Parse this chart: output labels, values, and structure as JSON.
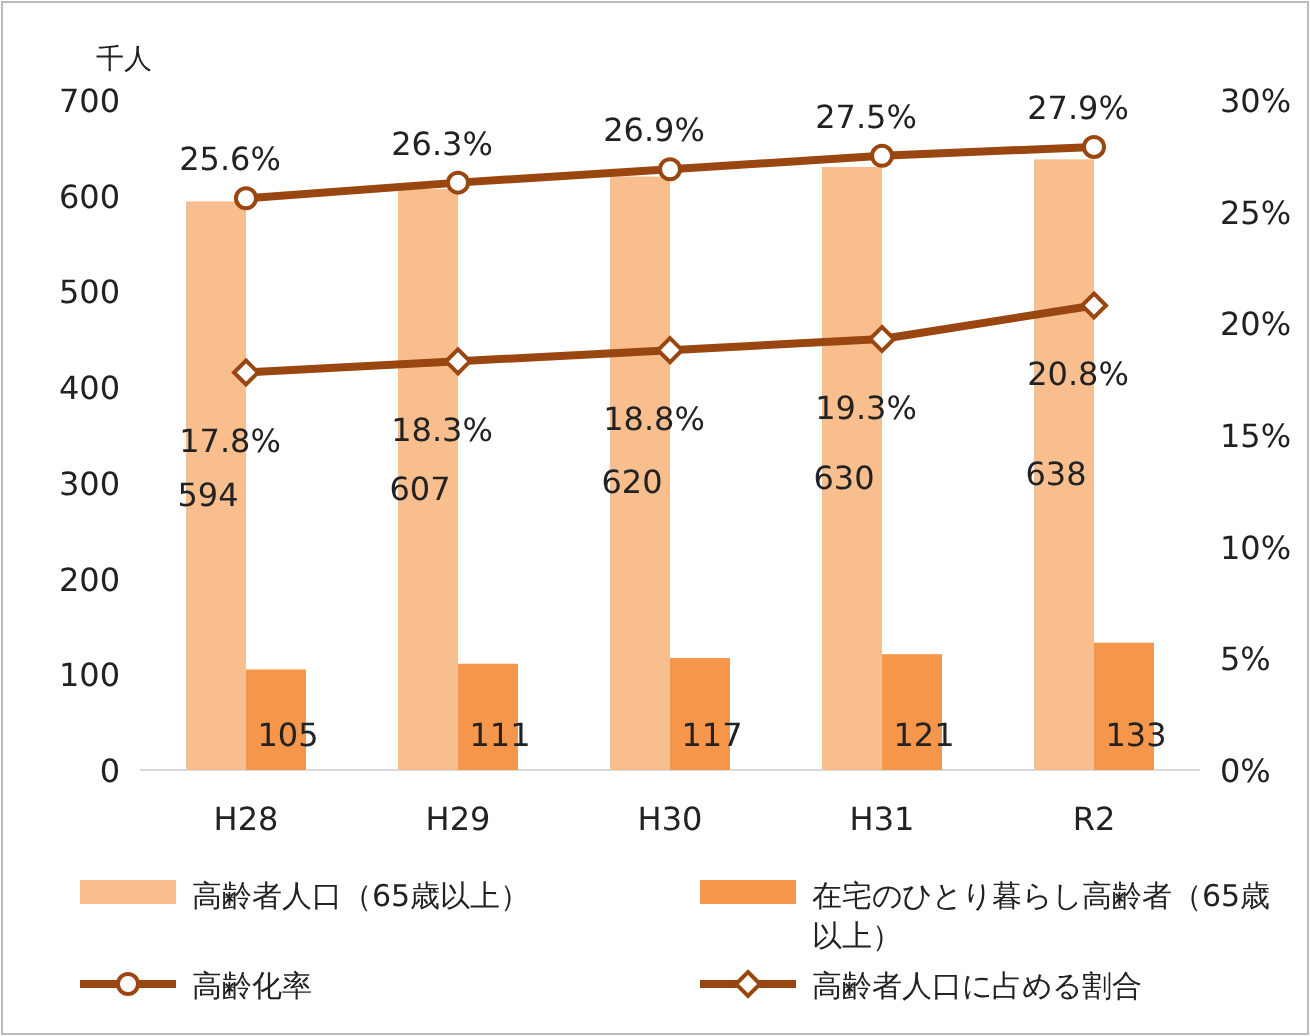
{
  "chart_data": {
    "type": "bar",
    "ylabel": "千人",
    "categories": [
      "H28",
      "H29",
      "H30",
      "H31",
      "R2"
    ],
    "series": [
      {
        "name": "高齢者人口（65歳以上）",
        "color": "#f9be8e",
        "values": [
          594,
          607,
          620,
          630,
          638
        ],
        "value_labels": [
          "594",
          "607",
          "620",
          "630",
          "638"
        ]
      },
      {
        "name": "在宅のひとり暮らし高齢者（65歳以上）",
        "color": "#f5964a",
        "values": [
          105,
          111,
          117,
          121,
          133
        ],
        "value_labels": [
          "105",
          "111",
          "117",
          "121",
          "133"
        ]
      },
      {
        "name": "高齢化率",
        "type": "line",
        "axis": "y2",
        "marker": "circle",
        "color": "#9a4611",
        "values": [
          25.6,
          26.3,
          26.9,
          27.5,
          27.9
        ],
        "value_labels": [
          "25.6%",
          "26.3%",
          "26.9%",
          "27.5%",
          "27.9%"
        ]
      },
      {
        "name": "高齢者人口に占める割合",
        "type": "line",
        "axis": "y2",
        "marker": "diamond",
        "color": "#9a4611",
        "values": [
          17.8,
          18.3,
          18.8,
          19.3,
          20.8
        ],
        "value_labels": [
          "17.8%",
          "18.3%",
          "18.8%",
          "19.3%",
          "20.8%"
        ]
      }
    ],
    "ylim": [
      0,
      700
    ],
    "yticks": [
      0,
      100,
      200,
      300,
      400,
      500,
      600,
      700
    ],
    "y2lim": [
      0,
      30
    ],
    "y2ticks": [
      {
        "value": 0,
        "label": "0%"
      },
      {
        "value": 5,
        "label": "5%"
      },
      {
        "value": 10,
        "label": "10%"
      },
      {
        "value": 15,
        "label": "15%"
      },
      {
        "value": 20,
        "label": "20%"
      },
      {
        "value": 25,
        "label": "25%"
      },
      {
        "value": 30,
        "label": "30%"
      }
    ],
    "legend": "bottom"
  }
}
